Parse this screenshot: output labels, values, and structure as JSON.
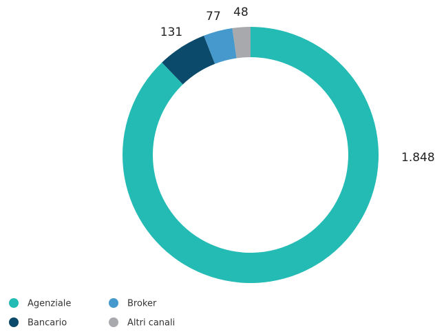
{
  "chart_data": {
    "type": "donut",
    "categories": [
      "Agenziale",
      "Bancario",
      "Broker",
      "Altri canali"
    ],
    "values": [
      1848,
      131,
      77,
      48
    ],
    "value_labels": [
      "1.848",
      "131",
      "77",
      "48"
    ],
    "colors": [
      "#23bbb4",
      "#0b4a6a",
      "#4599cc",
      "#a7a9ac"
    ]
  }
}
